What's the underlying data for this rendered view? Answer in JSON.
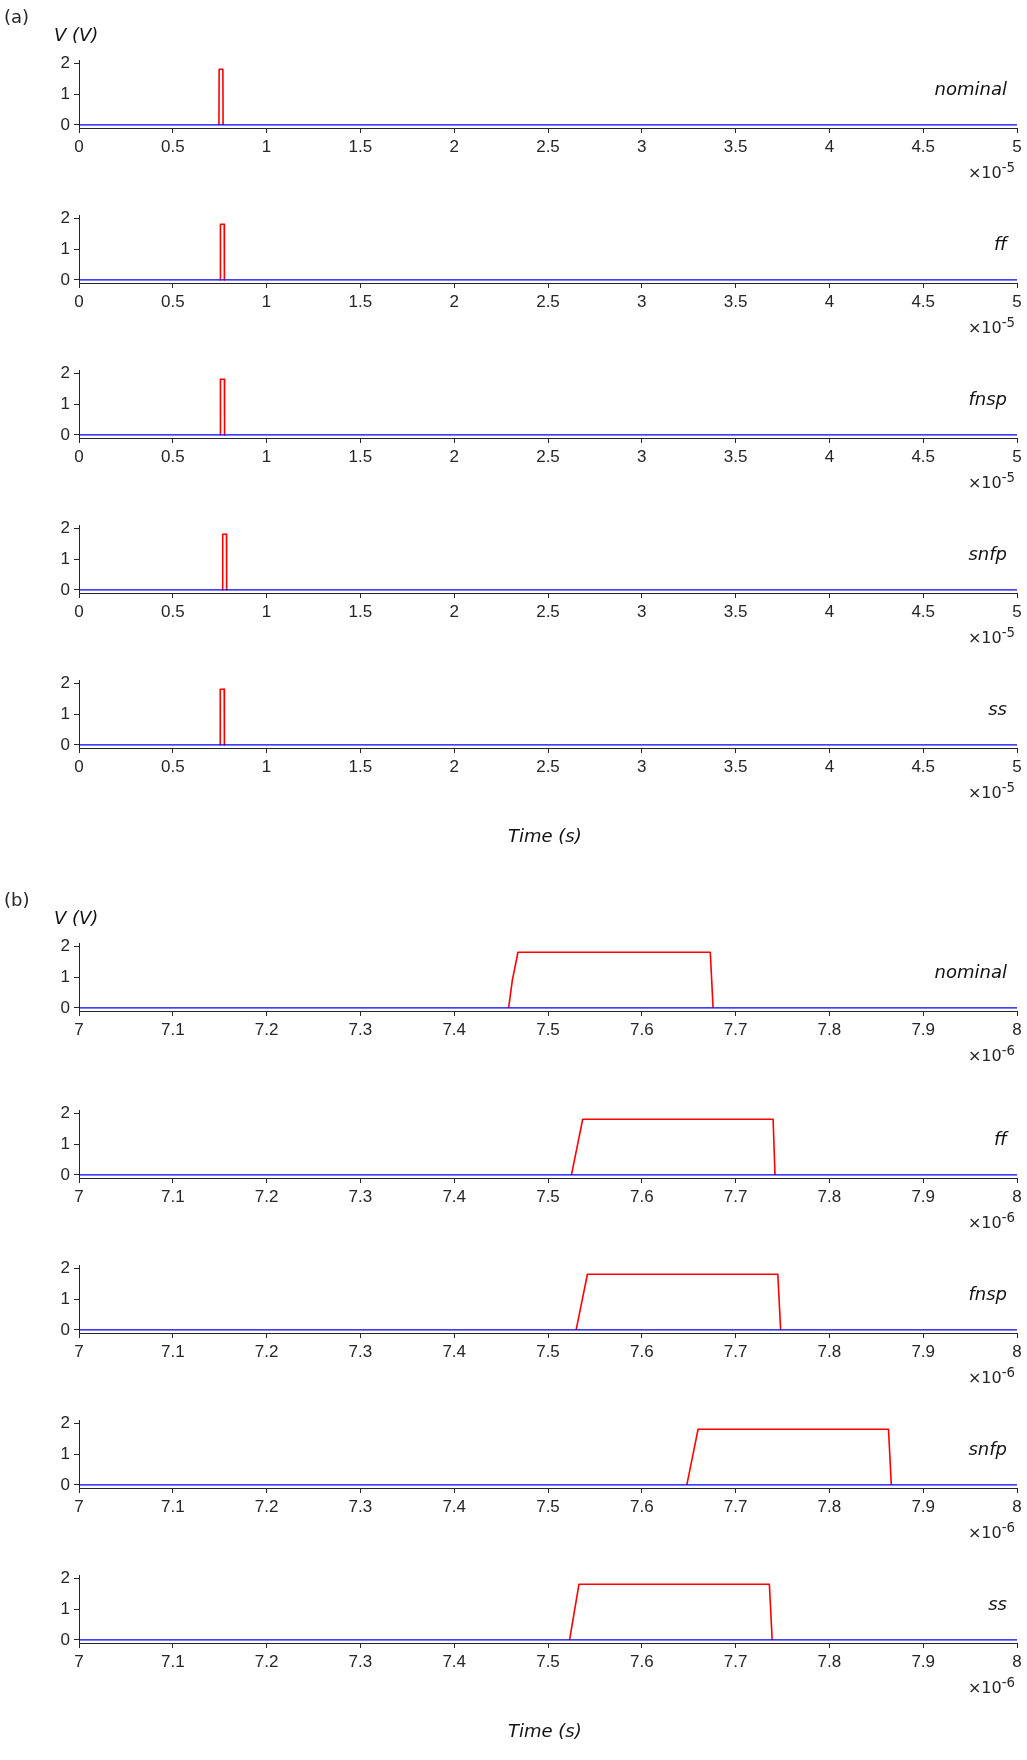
{
  "chart_data": [
    {
      "type": "line",
      "ylabel": "V (V)",
      "annotations": [
        "(a)",
        "nominal",
        "×10$^{-5}$"
      ],
      "xlim": [
        0,
        5
      ],
      "xticks": [
        0,
        0.5,
        1,
        1.5,
        2,
        2.5,
        3,
        3.5,
        4,
        4.5,
        5
      ],
      "ylim": [
        -0.1,
        2.1
      ],
      "yticks": [
        0,
        1,
        2
      ],
      "series": [
        {
          "color": "#ff0000",
          "x": [
            0.746,
            0.747,
            0.767,
            0.768
          ],
          "values": [
            0,
            1.8,
            1.8,
            0
          ]
        },
        {
          "color": "#0000ff",
          "x": [
            0,
            5
          ],
          "values": [
            0,
            0
          ]
        }
      ]
    },
    {
      "type": "line",
      "annotations": [
        "ff",
        "×10$^{-5}$"
      ],
      "xlim": [
        0,
        5
      ],
      "xticks": [
        0,
        0.5,
        1,
        1.5,
        2,
        2.5,
        3,
        3.5,
        4,
        4.5,
        5
      ],
      "ylim": [
        -0.1,
        2.1
      ],
      "yticks": [
        0,
        1,
        2
      ],
      "series": [
        {
          "color": "#ff0000",
          "x": [
            0.753,
            0.754,
            0.774,
            0.775
          ],
          "values": [
            0,
            1.8,
            1.8,
            0
          ]
        },
        {
          "color": "#0000ff",
          "x": [
            0,
            5
          ],
          "values": [
            0,
            0
          ]
        }
      ]
    },
    {
      "type": "line",
      "annotations": [
        "fnsp",
        "×10$^{-5}$"
      ],
      "xlim": [
        0,
        5
      ],
      "xticks": [
        0,
        0.5,
        1,
        1.5,
        2,
        2.5,
        3,
        3.5,
        4,
        4.5,
        5
      ],
      "ylim": [
        -0.1,
        2.1
      ],
      "yticks": [
        0,
        1,
        2
      ],
      "series": [
        {
          "color": "#ff0000",
          "x": [
            0.753,
            0.754,
            0.775,
            0.776
          ],
          "values": [
            0,
            1.8,
            1.8,
            0
          ]
        },
        {
          "color": "#0000ff",
          "x": [
            0,
            5
          ],
          "values": [
            0,
            0
          ]
        }
      ]
    },
    {
      "type": "line",
      "annotations": [
        "snfp",
        "×10$^{-5}$"
      ],
      "xlim": [
        0,
        5
      ],
      "xticks": [
        0,
        0.5,
        1,
        1.5,
        2,
        2.5,
        3,
        3.5,
        4,
        4.5,
        5
      ],
      "ylim": [
        -0.1,
        2.1
      ],
      "yticks": [
        0,
        1,
        2
      ],
      "series": [
        {
          "color": "#ff0000",
          "x": [
            0.765,
            0.766,
            0.786,
            0.787
          ],
          "values": [
            0,
            1.8,
            1.8,
            0
          ]
        },
        {
          "color": "#0000ff",
          "x": [
            0,
            5
          ],
          "values": [
            0,
            0
          ]
        }
      ]
    },
    {
      "type": "line",
      "xlabel": "Time (s)",
      "annotations": [
        "ss",
        "×10$^{-5}$"
      ],
      "xlim": [
        0,
        5
      ],
      "xticks": [
        0,
        0.5,
        1,
        1.5,
        2,
        2.5,
        3,
        3.5,
        4,
        4.5,
        5
      ],
      "ylim": [
        -0.1,
        2.1
      ],
      "yticks": [
        0,
        1,
        2
      ],
      "series": [
        {
          "color": "#ff0000",
          "x": [
            0.752,
            0.753,
            0.774,
            0.775
          ],
          "values": [
            0,
            1.8,
            1.8,
            0
          ]
        },
        {
          "color": "#0000ff",
          "x": [
            0,
            5
          ],
          "values": [
            0,
            0
          ]
        }
      ]
    },
    {
      "type": "line",
      "ylabel": "V (V)",
      "annotations": [
        "(b)",
        "nominal",
        "×10$^{-6}$"
      ],
      "xlim": [
        7,
        8
      ],
      "xticks": [
        7,
        7.1,
        7.2,
        7.3,
        7.4,
        7.5,
        7.6,
        7.7,
        7.8,
        7.9,
        8
      ],
      "ylim": [
        -0.1,
        2.1
      ],
      "yticks": [
        0,
        1,
        2
      ],
      "series": [
        {
          "color": "#ff0000",
          "x": [
            7.458,
            7.462,
            7.468,
            7.673,
            7.676
          ],
          "values": [
            0,
            0.9,
            1.8,
            1.8,
            0
          ]
        },
        {
          "color": "#0000ff",
          "x": [
            7,
            8
          ],
          "values": [
            0,
            0
          ]
        }
      ]
    },
    {
      "type": "line",
      "annotations": [
        "ff",
        "×10$^{-6}$"
      ],
      "xlim": [
        7,
        8
      ],
      "xticks": [
        7,
        7.1,
        7.2,
        7.3,
        7.4,
        7.5,
        7.6,
        7.7,
        7.8,
        7.9,
        8
      ],
      "ylim": [
        -0.1,
        2.1
      ],
      "yticks": [
        0,
        1,
        2
      ],
      "series": [
        {
          "color": "#ff0000",
          "x": [
            7.525,
            7.531,
            7.537,
            7.74,
            7.742
          ],
          "values": [
            0,
            0.9,
            1.8,
            1.8,
            0
          ]
        },
        {
          "color": "#0000ff",
          "x": [
            7,
            8
          ],
          "values": [
            0,
            0
          ]
        }
      ]
    },
    {
      "type": "line",
      "annotations": [
        "fnsp",
        "×10$^{-6}$"
      ],
      "xlim": [
        7,
        8
      ],
      "xticks": [
        7,
        7.1,
        7.2,
        7.3,
        7.4,
        7.5,
        7.6,
        7.7,
        7.8,
        7.9,
        8
      ],
      "ylim": [
        -0.1,
        2.1
      ],
      "yticks": [
        0,
        1,
        2
      ],
      "series": [
        {
          "color": "#ff0000",
          "x": [
            7.53,
            7.536,
            7.542,
            7.745,
            7.748
          ],
          "values": [
            0,
            0.9,
            1.8,
            1.8,
            0
          ]
        },
        {
          "color": "#0000ff",
          "x": [
            7,
            8
          ],
          "values": [
            0,
            0
          ]
        }
      ]
    },
    {
      "type": "line",
      "annotations": [
        "snfp",
        "×10$^{-6}$"
      ],
      "xlim": [
        7,
        8
      ],
      "xticks": [
        7,
        7.1,
        7.2,
        7.3,
        7.4,
        7.5,
        7.6,
        7.7,
        7.8,
        7.9,
        8
      ],
      "ylim": [
        -0.1,
        2.1
      ],
      "yticks": [
        0,
        1,
        2
      ],
      "series": [
        {
          "color": "#ff0000",
          "x": [
            7.648,
            7.654,
            7.66,
            7.863,
            7.866
          ],
          "values": [
            0,
            0.9,
            1.8,
            1.8,
            0
          ]
        },
        {
          "color": "#0000ff",
          "x": [
            7,
            8
          ],
          "values": [
            0,
            0
          ]
        }
      ]
    },
    {
      "type": "line",
      "xlabel": "Time (s)",
      "annotations": [
        "ss",
        "×10$^{-6}$"
      ],
      "xlim": [
        7,
        8
      ],
      "xticks": [
        7,
        7.1,
        7.2,
        7.3,
        7.4,
        7.5,
        7.6,
        7.7,
        7.8,
        7.9,
        8
      ],
      "ylim": [
        -0.1,
        2.1
      ],
      "yticks": [
        0,
        1,
        2
      ],
      "series": [
        {
          "color": "#ff0000",
          "x": [
            7.523,
            7.528,
            7.533,
            7.736,
            7.739
          ],
          "values": [
            0,
            0.9,
            1.8,
            1.8,
            0
          ]
        },
        {
          "color": "#0000ff",
          "x": [
            7,
            8
          ],
          "values": [
            0,
            0
          ]
        }
      ]
    }
  ]
}
